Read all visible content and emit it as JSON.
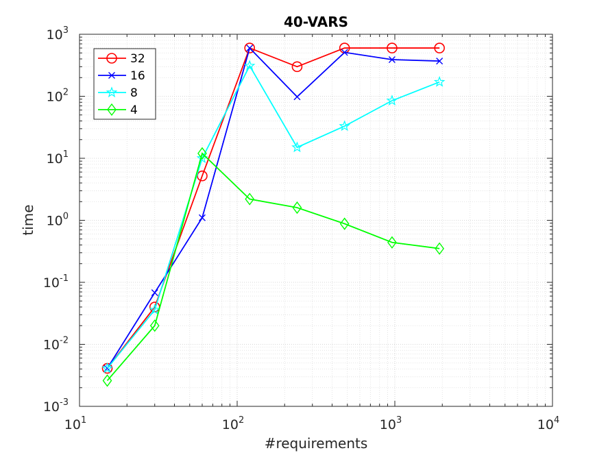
{
  "chart_data": {
    "type": "line",
    "scale": "loglog",
    "title": "40-VARS",
    "xlabel": "#requirements",
    "ylabel": "time",
    "xlim": [
      10,
      10000
    ],
    "ylim": [
      0.001,
      1000
    ],
    "grid": true,
    "legend_position": "top-left",
    "x": [
      15,
      30,
      60,
      120,
      240,
      480,
      960,
      1920
    ],
    "series": [
      {
        "name": "32",
        "color": "#ff0000",
        "marker": "circle",
        "values": [
          0.0041,
          0.04,
          5.2,
          600,
          300,
          600,
          600,
          600
        ]
      },
      {
        "name": "16",
        "color": "#0000ff",
        "marker": "x",
        "values": [
          0.0041,
          0.068,
          1.1,
          600,
          98,
          510,
          390,
          370
        ]
      },
      {
        "name": "8",
        "color": "#00ffff",
        "marker": "star",
        "values": [
          0.0041,
          0.036,
          10,
          310,
          15,
          33,
          85,
          170
        ]
      },
      {
        "name": "4",
        "color": "#00ff00",
        "marker": "diamond",
        "values": [
          0.0026,
          0.02,
          12,
          2.2,
          1.6,
          0.88,
          0.44,
          0.35
        ]
      }
    ],
    "x_ticks": [
      {
        "base": "10",
        "exp": "1"
      },
      {
        "base": "10",
        "exp": "2"
      },
      {
        "base": "10",
        "exp": "3"
      },
      {
        "base": "10",
        "exp": "4"
      }
    ],
    "y_ticks": [
      {
        "base": "10",
        "exp": "-3"
      },
      {
        "base": "10",
        "exp": "-2"
      },
      {
        "base": "10",
        "exp": "-1"
      },
      {
        "base": "10",
        "exp": "0"
      },
      {
        "base": "10",
        "exp": "1"
      },
      {
        "base": "10",
        "exp": "2"
      },
      {
        "base": "10",
        "exp": "3"
      }
    ]
  }
}
